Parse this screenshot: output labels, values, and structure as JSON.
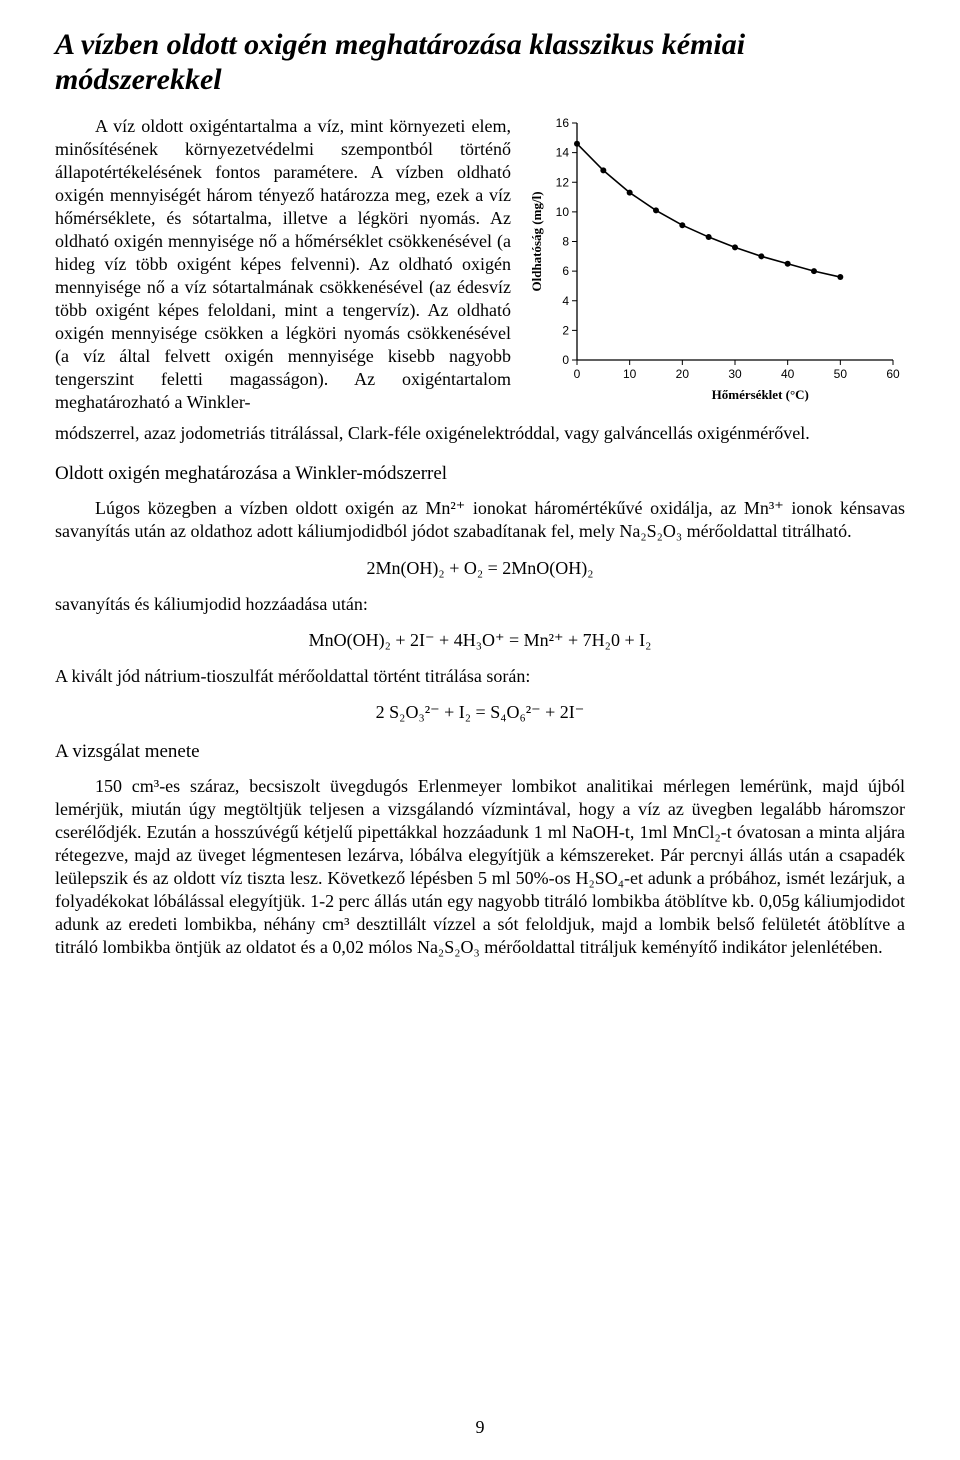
{
  "title": "A vízben oldott oxigén meghatározása klasszikus kémiai módszerekkel",
  "intro_first_words": "A víz oldott oxigéntartalma a víz, mint környezeti elem, minősítésének környezetvédelmi szempontból történő állapotértékelésének fontos paramétere. A vízben oldható oxigén mennyiségét",
  "intro_rest": "három tényező határozza meg, ezek a víz hőmérséklete, és sótartalma, illetve a légköri nyomás. Az oldható oxigén mennyisége nő a hőmérséklet csökkenésével (a hideg víz több oxigént képes felvenni). Az oldható oxigén mennyisége nő a víz sótartalmának csökkenésével (az édesvíz több oxigént képes feloldani, mint a tengervíz). Az oldható oxigén mennyisége csökken a légköri nyomás csökkenésével (a víz által felvett oxigén mennyisége kisebb nagyobb tengerszint feletti magasságon). Az oxigéntartalom meghatározható a Winkler-",
  "intro_after": "módszerrel, azaz jodometriás titrálással, Clark-féle oxigénelektróddal, vagy galváncellás oxigénmérővel.",
  "heading_winkler": "Oldott oxigén meghatározása a Winkler-módszerrel",
  "winkler_paragraph": "Lúgos közegben a vízben oldott oxigén az Mn²⁺ ionokat háromértékűvé oxidálja, az Mn³⁺ ionok kénsavas savanyítás után az oldathoz adott káliumjodidból jódot szabadítanak fel, mely Na₂S₂O₃ mérőoldattal titrálható.",
  "eq1": "2Mn(OH)₂ + O₂ = 2MnO(OH)₂",
  "before_eq2": "savanyítás és káliumjodid hozzáadása után:",
  "eq2": "MnO(OH)₂ + 2I⁻ + 4H₃O⁺  =  Mn²⁺ + 7H₂0 + I₂",
  "before_eq3": "A kivált jód nátrium-tioszulfát mérőoldattal történt titrálása során:",
  "eq3": "2 S₂O₃²⁻ + I₂ = S₄O₆²⁻  + 2I⁻",
  "heading_procedure": "A vizsgálat menete",
  "procedure": "150 cm³-es száraz, becsiszolt üvegdugós Erlenmeyer lombikot analitikai mérlegen lemérünk, majd újból lemérjük, miután úgy megtöltjük teljesen a vizsgálandó vízmintával, hogy a víz az üvegben legalább háromszor cserélődjék. Ezután a hosszúvégű kétjelű pipettákkal hozzáadunk 1 ml NaOH-t, 1ml MnCl₂-t óvatosan a minta aljára rétegezve, majd az üveget légmentesen lezárva, lóbálva elegyítjük a kémszereket. Pár percnyi állás után a csapadék leülepszik és az oldott víz tiszta lesz. Következő lépésben 5 ml 50%-os H₂SO₄-et adunk a próbához, ismét lezárjuk, a folyadékokat lóbálással elegyítjük. 1-2 perc állás után egy nagyobb titráló lombikba átöblítve kb. 0,05g káliumjodidot adunk az eredeti lombikba, néhány cm³ desztillált vízzel a sót feloldjuk, majd a lombik belső felületét átöblítve a titráló lombikba öntjük az oldatot és a 0,02 mólos Na₂S₂O₃ mérőoldattal titráljuk keményítő indikátor jelenlétében.",
  "page_number": "9",
  "solubility_chart": {
    "type": "line",
    "xlabel": "Hőmérséklet (°C)",
    "ylabel": "Oldhatóság (mg/l)",
    "xlim": [
      0,
      60
    ],
    "ylim": [
      0,
      16
    ],
    "xtick_step": 10,
    "ytick_step": 2,
    "axis_color": "#000000",
    "tick_font_size": 12,
    "label_font_size": 13,
    "line_color": "#000000",
    "line_width": 1.6,
    "marker_color": "#000000",
    "marker_radius": 3,
    "background": "#ffffff",
    "points": [
      {
        "x": 0,
        "y": 14.6
      },
      {
        "x": 5,
        "y": 12.8
      },
      {
        "x": 10,
        "y": 11.3
      },
      {
        "x": 15,
        "y": 10.1
      },
      {
        "x": 20,
        "y": 9.1
      },
      {
        "x": 25,
        "y": 8.3
      },
      {
        "x": 30,
        "y": 7.6
      },
      {
        "x": 35,
        "y": 7.0
      },
      {
        "x": 40,
        "y": 6.5
      },
      {
        "x": 45,
        "y": 6.0
      },
      {
        "x": 50,
        "y": 5.6
      }
    ]
  }
}
